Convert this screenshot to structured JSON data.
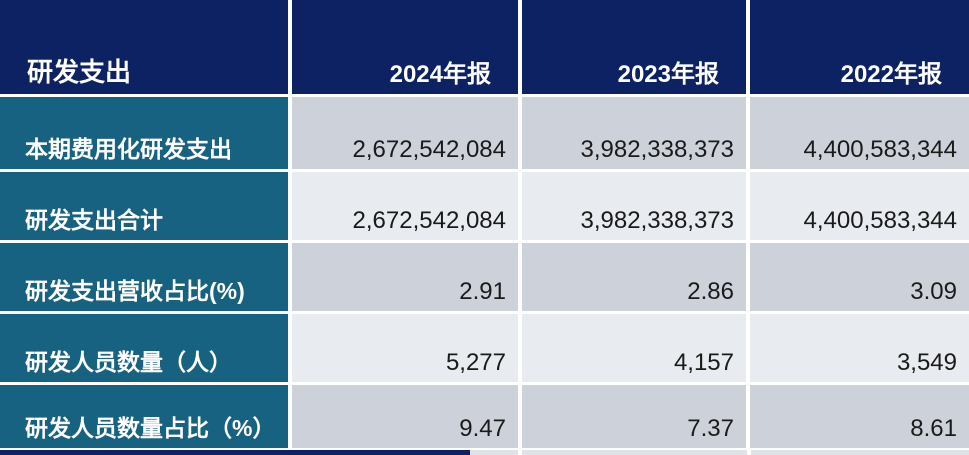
{
  "chart_data": {
    "type": "table",
    "header": {
      "title": "研发支出",
      "columns": [
        "2024年报",
        "2023年报",
        "2022年报"
      ]
    },
    "rows": [
      {
        "label": "本期费用化研发支出",
        "values": [
          "2,672,542,084",
          "3,982,338,373",
          "4,400,583,344"
        ]
      },
      {
        "label": "研发支出合计",
        "values": [
          "2,672,542,084",
          "3,982,338,373",
          "4,400,583,344"
        ]
      },
      {
        "label": "研发支出营收占比(%)",
        "values": [
          "2.91",
          "2.86",
          "3.09"
        ]
      },
      {
        "label": "研发人员数量（人）",
        "values": [
          "5,277",
          "4,157",
          "3,549"
        ]
      },
      {
        "label": "研发人员数量占比（%）",
        "values": [
          "9.47",
          "7.37",
          "8.61"
        ]
      }
    ],
    "layout": {
      "first_column_role": "row labels",
      "value_alignment": "right",
      "row_striping": "alternating dark-gray / light-gray"
    }
  },
  "colors": {
    "header_bg": "#0d2263",
    "label_bg": "#176181",
    "row_alt_dark": "#cdd1d9",
    "row_alt_light": "#e8ebef",
    "bottom_strip": "#dfe3e9",
    "value_text": "#1a1a1a",
    "header_text": "#ffffff",
    "separator": "#ffffff"
  }
}
